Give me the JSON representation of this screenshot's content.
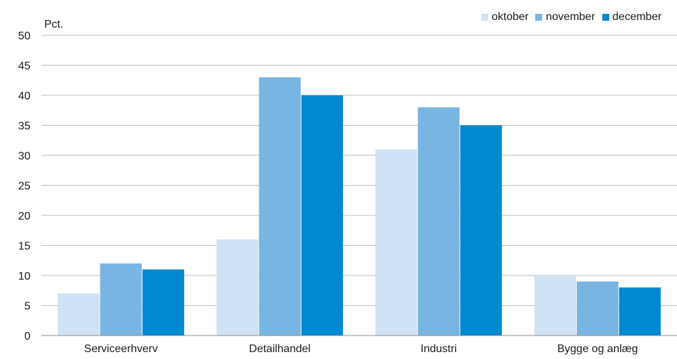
{
  "chart_data": {
    "type": "bar",
    "ylabel": "Pct.",
    "ylim": [
      0,
      50
    ],
    "yticks": [
      0,
      5,
      10,
      15,
      20,
      25,
      30,
      35,
      40,
      45,
      50
    ],
    "grid": true,
    "legend_position": "top-right",
    "categories": [
      "Serviceerhverv",
      "Detailhandel",
      "Industri",
      "Bygge og anlæg"
    ],
    "series": [
      {
        "name": "oktober",
        "color": "#cfe1f5",
        "values": [
          7,
          16,
          31,
          10
        ]
      },
      {
        "name": "november",
        "color": "#78b5e3",
        "values": [
          12,
          43,
          38,
          9
        ]
      },
      {
        "name": "december",
        "color": "#0089d0",
        "values": [
          11,
          40,
          35,
          8
        ]
      }
    ]
  }
}
